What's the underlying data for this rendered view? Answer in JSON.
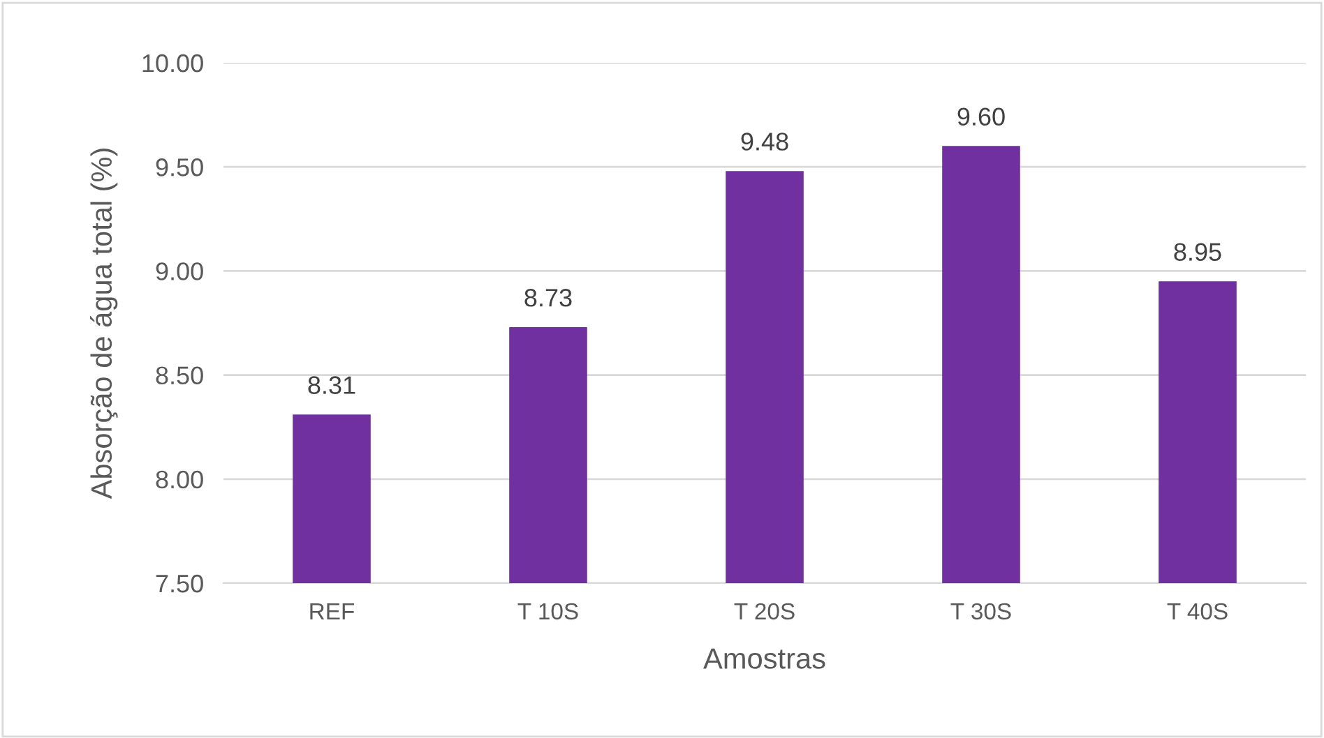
{
  "chart_data": {
    "type": "bar",
    "xlabel": "Amostras",
    "ylabel": "Absorção de água total (%)",
    "categories": [
      "REF",
      "T 10S",
      "T 20S",
      "T 30S",
      "T 40S"
    ],
    "values": [
      8.31,
      8.73,
      9.48,
      9.6,
      8.95
    ],
    "value_labels": [
      "8.31",
      "8.73",
      "9.48",
      "9.60",
      "8.95"
    ],
    "color": "#7030a0",
    "ylim": [
      7.5,
      10.0
    ],
    "yticks": [
      {
        "value": 7.5,
        "label": "7.50"
      },
      {
        "value": 8.0,
        "label": "8.00"
      },
      {
        "value": 8.5,
        "label": "8.50"
      },
      {
        "value": 9.0,
        "label": "9.00"
      },
      {
        "value": 9.5,
        "label": "9.50"
      },
      {
        "value": 10.0,
        "label": "10.00"
      }
    ],
    "grid": "y"
  }
}
